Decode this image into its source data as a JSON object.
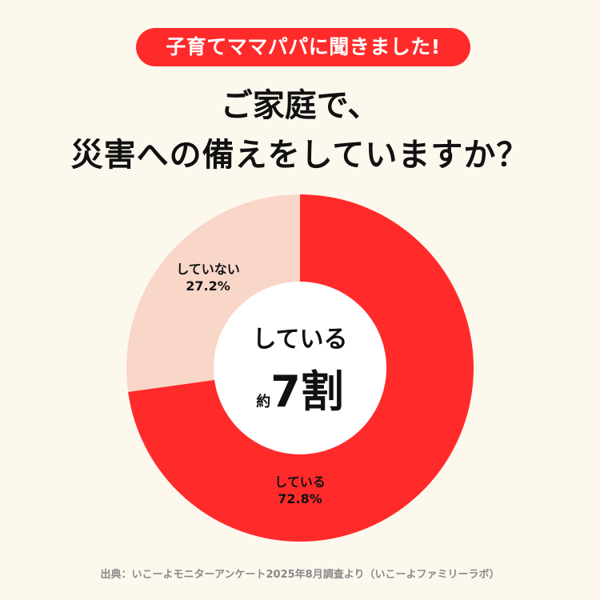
{
  "badge": {
    "text": "子育てママパパに聞きました!"
  },
  "title": {
    "line1": "ご家庭で、",
    "line2": "災害への備えをしていますか？"
  },
  "center": {
    "main": "している",
    "prefix": "約",
    "big": "7割"
  },
  "labels": {
    "not_name": "していない",
    "not_value": "27.2%",
    "yes_name": "している",
    "yes_value": "72.8%"
  },
  "source": "出典：いこーよモニターアンケート2025年8月調査より（いこーよファミリーラボ）",
  "colors": {
    "background": "#fdf8ee",
    "accent": "#ff2b2b",
    "secondary": "#f8d7c8",
    "center": "#ffffff"
  },
  "chart_data": {
    "type": "pie",
    "title": "ご家庭で、災害への備えをしていますか？",
    "categories": [
      "している",
      "していない"
    ],
    "values": [
      72.8,
      27.2
    ],
    "unit": "%"
  }
}
